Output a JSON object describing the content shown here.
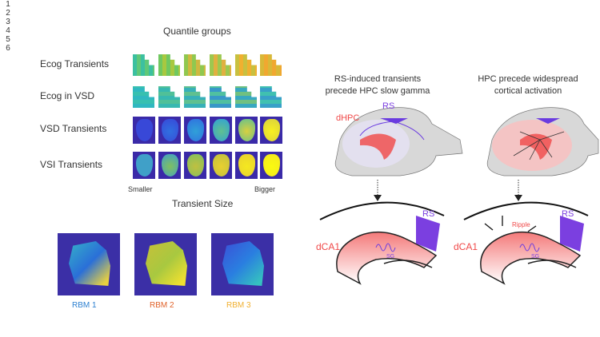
{
  "left_panel": {
    "title": "Quantile groups",
    "groups": [
      "1",
      "2",
      "3",
      "4",
      "5",
      "6"
    ],
    "rows": [
      "Ecog Transients",
      "Ecog in VSD",
      "VSD Transients",
      "VSI Transients"
    ],
    "smaller": "Smaller",
    "bigger": "Bigger",
    "xlabel": "Transient Size"
  },
  "rbm": [
    {
      "label": "RBM 1",
      "color": "#2b7fd0"
    },
    {
      "label": "RBM 2",
      "color": "#e0622a"
    },
    {
      "label": "RBM 3",
      "color": "#f0b030"
    }
  ],
  "right_panel": {
    "left_title_1": "RS-induced transients",
    "left_title_2": "precede HPC slow gamma",
    "right_title_1": "HPC precede widespread",
    "right_title_2": "cortical activation",
    "rs": "RS",
    "dhpc": "dHPC",
    "dca1": "dCA1",
    "sg": "SG",
    "ripple": "Ripple"
  },
  "colors": {
    "red": "#f04848",
    "purple": "#7b3fe0"
  }
}
